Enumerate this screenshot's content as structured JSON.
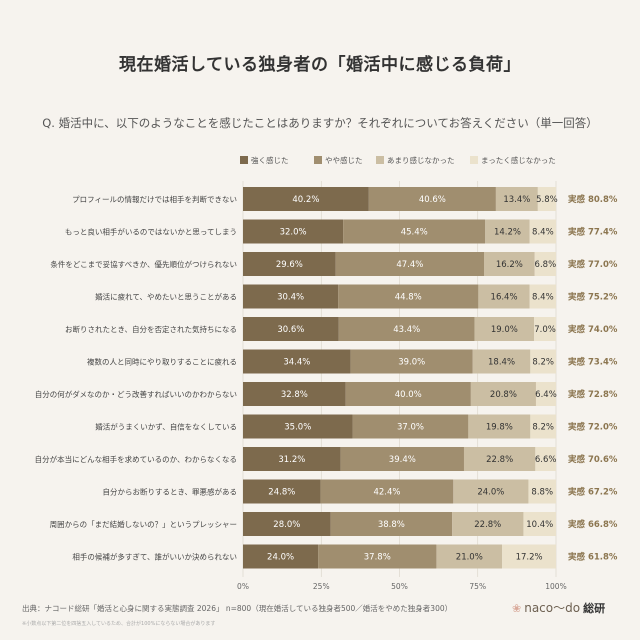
{
  "title": "現在婚活している独身者の「婚活中に感じる負荷」",
  "question": "Q. 婚活中に、以下のようなことを感じたことはありますか？それぞれについてお答えください（単一回答）",
  "colors": {
    "bg": "#f6f3ee",
    "total_text": "#8c7650",
    "label_text": "#444"
  },
  "chart_data": {
    "type": "bar",
    "stacked": true,
    "orientation": "horizontal",
    "xlim": [
      0,
      100
    ],
    "xticks": [
      "0%",
      "25%",
      "50%",
      "75%",
      "100%"
    ],
    "legend_position": "top",
    "categories": [
      "プロフィールの情報だけでは相手を判断できない",
      "もっと良い相手がいるのではないかと思ってしまう",
      "条件をどこまで妥協すべきか、優先順位がつけられない",
      "婚活に疲れて、やめたいと思うことがある",
      "お断りされたとき、自分を否定された気持ちになる",
      "複数の人と同時にやり取りすることに疲れる",
      "自分の何がダメなのか・どう改善すればいいのかわからない",
      "婚活がうまくいかず、自信をなくしている",
      "自分が本当にどんな相手を求めているのか、わからなくなる",
      "自分からお断りするとき、罪悪感がある",
      "周囲からの「まだ結婚しないの？」というプレッシャー",
      "相手の候補が多すぎて、誰がいいか決められない"
    ],
    "series": [
      {
        "name": "強く感じた",
        "color": "#7d6a4d",
        "text_color": "#ffffff",
        "values": [
          40.2,
          32.0,
          29.6,
          30.4,
          30.6,
          34.4,
          32.8,
          35.0,
          31.2,
          24.8,
          28.0,
          24.0
        ]
      },
      {
        "name": "やや感じた",
        "color": "#a08e6f",
        "text_color": "#ffffff",
        "values": [
          40.6,
          45.4,
          47.4,
          44.8,
          43.4,
          39.0,
          40.0,
          37.0,
          39.4,
          42.4,
          38.8,
          37.8
        ]
      },
      {
        "name": "あまり感じなかった",
        "color": "#cbbea3",
        "text_color": "#333333",
        "values": [
          13.4,
          14.2,
          16.2,
          16.4,
          19.0,
          18.4,
          20.8,
          19.8,
          22.8,
          24.0,
          22.8,
          21.0
        ]
      },
      {
        "name": "まったく感じなかった",
        "color": "#ebe2cc",
        "text_color": "#333333",
        "values": [
          5.8,
          8.4,
          6.8,
          8.4,
          7.0,
          8.2,
          6.4,
          8.2,
          6.6,
          8.8,
          10.4,
          17.2
        ]
      }
    ],
    "value_labels": [
      [
        "40.2%",
        "40.6%",
        "13.4%",
        "5.8%"
      ],
      [
        "32.0%",
        "45.4%",
        "14.2%",
        "8.4%"
      ],
      [
        "29.6%",
        "47.4%",
        "16.2%",
        "6.8%"
      ],
      [
        "30.4%",
        "44.8%",
        "16.4%",
        "8.4%"
      ],
      [
        "30.6%",
        "43.4%",
        "19.0%",
        "7.0%"
      ],
      [
        "34.4%",
        "39.0%",
        "18.4%",
        "8.2%"
      ],
      [
        "32.8%",
        "40.0%",
        "20.8%",
        "6.4%"
      ],
      [
        "35.0%",
        "37.0%",
        "19.8%",
        "8.2%"
      ],
      [
        "31.2%",
        "39.4%",
        "22.8%",
        "6.6%"
      ],
      [
        "24.8%",
        "42.4%",
        "24.0%",
        "8.8%"
      ],
      [
        "28.0%",
        "38.8%",
        "22.8%",
        "10.4%"
      ],
      [
        "24.0%",
        "37.8%",
        "21.0%",
        "17.2%"
      ]
    ],
    "totals": [
      "実感 80.8%",
      "実感 77.4%",
      "実感 77.0%",
      "実感 75.2%",
      "実感 74.0%",
      "実感 73.4%",
      "実感 72.8%",
      "実感 72.0%",
      "実感 70.6%",
      "実感 67.2%",
      "実感 66.8%",
      "実感 61.8%"
    ]
  },
  "footer": {
    "source": "出典：ナコード総研「婚活と心身に関する実態調査 2026」 n=800（現在婚活している独身者500／婚活をやめた独身者300）",
    "note": "※小数点以下第二位を四捨五入しているため、合計が100%にならない場合があります"
  },
  "logo": {
    "text": "naco〜do",
    "suffix": "総研",
    "icon": "heart-icon"
  }
}
